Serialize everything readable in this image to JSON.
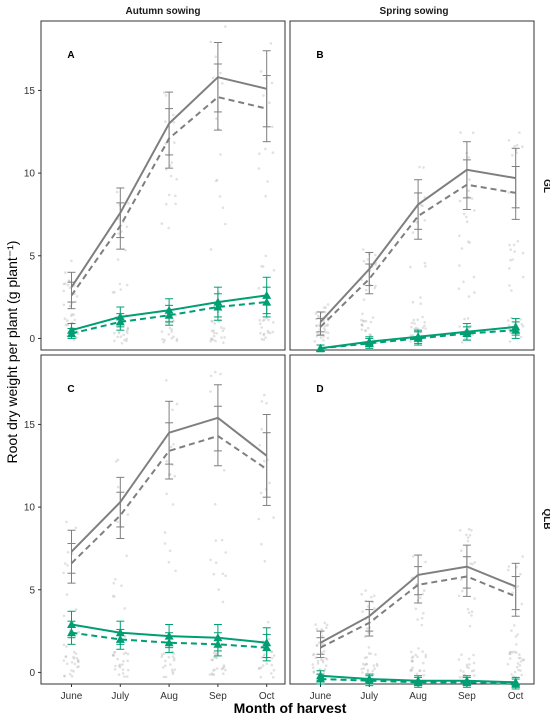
{
  "chart_data": {
    "type": "line",
    "xlabel": "Month of harvest",
    "ylabel": "Root dry weight per plant (g plant⁻¹)",
    "x": [
      "June",
      "July",
      "Aug",
      "Sep",
      "Oct"
    ],
    "ylim": [
      -0.7,
      19.2
    ],
    "yticks": [
      "0",
      "5",
      "10",
      "15"
    ],
    "column_strips": [
      "Autumn sowing",
      "Spring sowing"
    ],
    "row_strips": [
      "GL",
      "QLB"
    ],
    "colors": {
      "grey": "#7f7f7f",
      "green": "#009e73",
      "jitter": "#bdbdbd"
    },
    "panels": [
      {
        "label": "A",
        "column": "Autumn sowing",
        "row": "GL",
        "series": [
          {
            "color": "grey",
            "linestyle": "solid",
            "values": [
              3.1,
              7.6,
              13.0,
              15.8,
              15.1
            ],
            "err": [
              0.9,
              1.5,
              1.9,
              2.1,
              2.3
            ]
          },
          {
            "color": "grey",
            "linestyle": "dashed",
            "values": [
              2.6,
              6.8,
              12.1,
              14.6,
              13.9
            ],
            "err": [
              0.8,
              1.4,
              1.8,
              2.0,
              2.0
            ]
          },
          {
            "color": "green",
            "linestyle": "solid",
            "marker": "triangle",
            "values": [
              0.5,
              1.3,
              1.7,
              2.2,
              2.6
            ],
            "err": [
              0.4,
              0.6,
              0.7,
              0.9,
              1.1
            ]
          },
          {
            "color": "green",
            "linestyle": "dashed",
            "marker": "triangle",
            "values": [
              0.3,
              1.0,
              1.4,
              1.9,
              2.2
            ],
            "err": [
              0.3,
              0.5,
              0.6,
              0.8,
              0.9
            ]
          }
        ]
      },
      {
        "label": "B",
        "column": "Spring sowing",
        "row": "GL",
        "series": [
          {
            "color": "grey",
            "linestyle": "solid",
            "values": [
              1.0,
              4.2,
              8.1,
              10.2,
              9.7
            ],
            "err": [
              0.6,
              1.0,
              1.5,
              1.7,
              1.8
            ]
          },
          {
            "color": "grey",
            "linestyle": "dashed",
            "values": [
              0.7,
              3.6,
              7.4,
              9.3,
              8.8
            ],
            "err": [
              0.5,
              0.9,
              1.4,
              1.5,
              1.6
            ]
          },
          {
            "color": "green",
            "linestyle": "solid",
            "marker": "triangle",
            "values": [
              -0.6,
              -0.2,
              0.1,
              0.4,
              0.7
            ],
            "err": [
              0.2,
              0.3,
              0.4,
              0.5,
              0.5
            ]
          },
          {
            "color": "green",
            "linestyle": "dashed",
            "marker": "triangle",
            "values": [
              -0.6,
              -0.3,
              0.0,
              0.3,
              0.5
            ],
            "err": [
              0.2,
              0.3,
              0.4,
              0.4,
              0.5
            ]
          }
        ]
      },
      {
        "label": "C",
        "column": "Autumn sowing",
        "row": "QLB",
        "series": [
          {
            "color": "grey",
            "linestyle": "solid",
            "values": [
              7.3,
              10.3,
              14.5,
              15.4,
              13.1
            ],
            "err": [
              1.3,
              1.5,
              1.9,
              2.0,
              2.5
            ]
          },
          {
            "color": "grey",
            "linestyle": "dashed",
            "values": [
              6.6,
              9.5,
              13.4,
              14.3,
              12.3
            ],
            "err": [
              1.2,
              1.4,
              1.7,
              1.8,
              2.2
            ]
          },
          {
            "color": "green",
            "linestyle": "solid",
            "marker": "triangle",
            "values": [
              2.9,
              2.4,
              2.2,
              2.1,
              1.8
            ],
            "err": [
              0.8,
              0.7,
              0.7,
              0.8,
              0.9
            ]
          },
          {
            "color": "green",
            "linestyle": "dashed",
            "marker": "triangle",
            "values": [
              2.4,
              2.0,
              1.8,
              1.7,
              1.5
            ],
            "err": [
              0.7,
              0.6,
              0.6,
              0.7,
              0.8
            ]
          }
        ]
      },
      {
        "label": "D",
        "column": "Spring sowing",
        "row": "QLB",
        "series": [
          {
            "color": "grey",
            "linestyle": "solid",
            "values": [
              1.8,
              3.4,
              5.9,
              6.4,
              5.2
            ],
            "err": [
              0.7,
              0.9,
              1.2,
              1.3,
              1.4
            ]
          },
          {
            "color": "grey",
            "linestyle": "dashed",
            "values": [
              1.5,
              3.0,
              5.3,
              5.8,
              4.6
            ],
            "err": [
              0.6,
              0.8,
              1.1,
              1.2,
              1.2
            ]
          },
          {
            "color": "green",
            "linestyle": "solid",
            "marker": "triangle",
            "values": [
              -0.2,
              -0.4,
              -0.5,
              -0.5,
              -0.6
            ],
            "err": [
              0.3,
              0.3,
              0.3,
              0.3,
              0.3
            ]
          },
          {
            "color": "green",
            "linestyle": "dashed",
            "marker": "triangle",
            "values": [
              -0.4,
              -0.5,
              -0.6,
              -0.6,
              -0.7
            ],
            "err": [
              0.3,
              0.3,
              0.3,
              0.3,
              0.3
            ]
          }
        ]
      }
    ]
  }
}
